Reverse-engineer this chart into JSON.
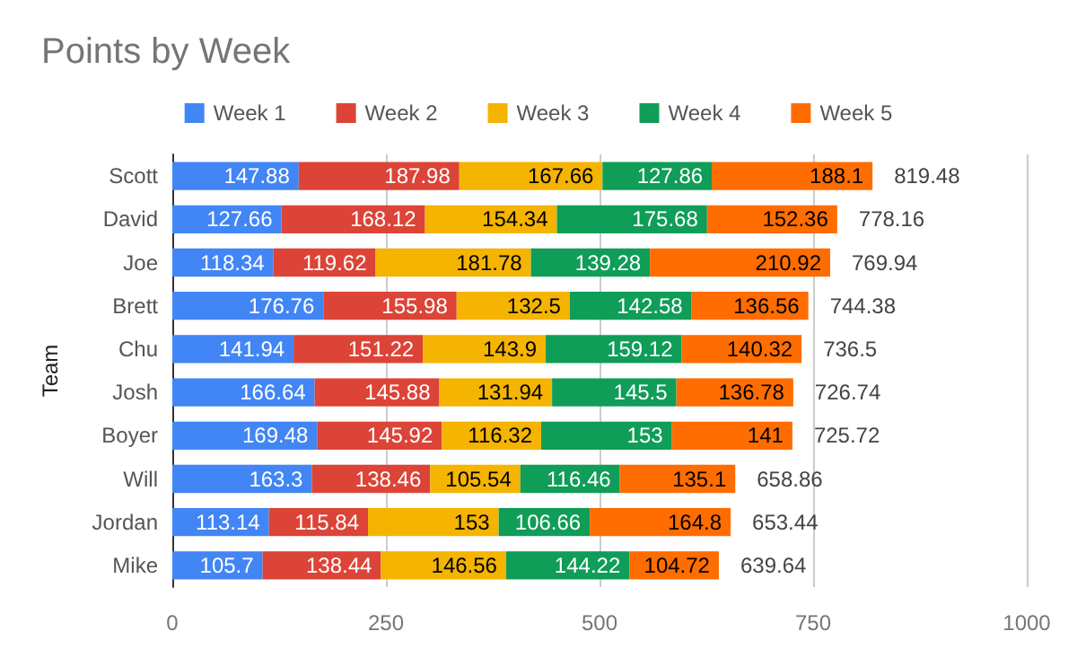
{
  "chart_data": {
    "type": "bar",
    "title": "Points by Week",
    "ylabel": "Team",
    "orientation": "horizontal",
    "stacked": true,
    "categories": [
      "Scott",
      "David",
      "Joe",
      "Brett",
      "Chu",
      "Josh",
      "Boyer",
      "Will",
      "Jordan",
      "Mike"
    ],
    "series": [
      {
        "name": "Week 1",
        "color": "#4285f4",
        "values": [
          147.88,
          127.66,
          118.34,
          176.76,
          141.94,
          166.64,
          169.48,
          163.3,
          113.14,
          105.7
        ]
      },
      {
        "name": "Week 2",
        "color": "#db4437",
        "values": [
          187.98,
          168.12,
          119.62,
          155.98,
          151.22,
          145.88,
          145.92,
          138.46,
          115.84,
          138.44
        ]
      },
      {
        "name": "Week 3",
        "color": "#f4b400",
        "values": [
          167.66,
          154.34,
          181.78,
          132.5,
          143.9,
          131.94,
          116.32,
          105.54,
          153,
          146.56
        ]
      },
      {
        "name": "Week 4",
        "color": "#0f9d58",
        "values": [
          127.86,
          175.68,
          139.28,
          142.58,
          159.12,
          145.5,
          153,
          116.46,
          106.66,
          144.22
        ]
      },
      {
        "name": "Week 5",
        "color": "#ff6d01",
        "values": [
          188.1,
          152.36,
          210.92,
          136.56,
          140.32,
          136.78,
          141,
          135.1,
          164.8,
          104.72
        ]
      }
    ],
    "totals": [
      "819.48",
      "778.16",
      "769.94",
      "744.38",
      "736.5",
      "726.74",
      "725.72",
      "658.86",
      "653.44",
      "639.64"
    ],
    "data_labels": true,
    "xlim": [
      0,
      1000
    ],
    "xticks": [
      0,
      250,
      500,
      750,
      1000
    ],
    "grid": "x",
    "legend": "top"
  }
}
